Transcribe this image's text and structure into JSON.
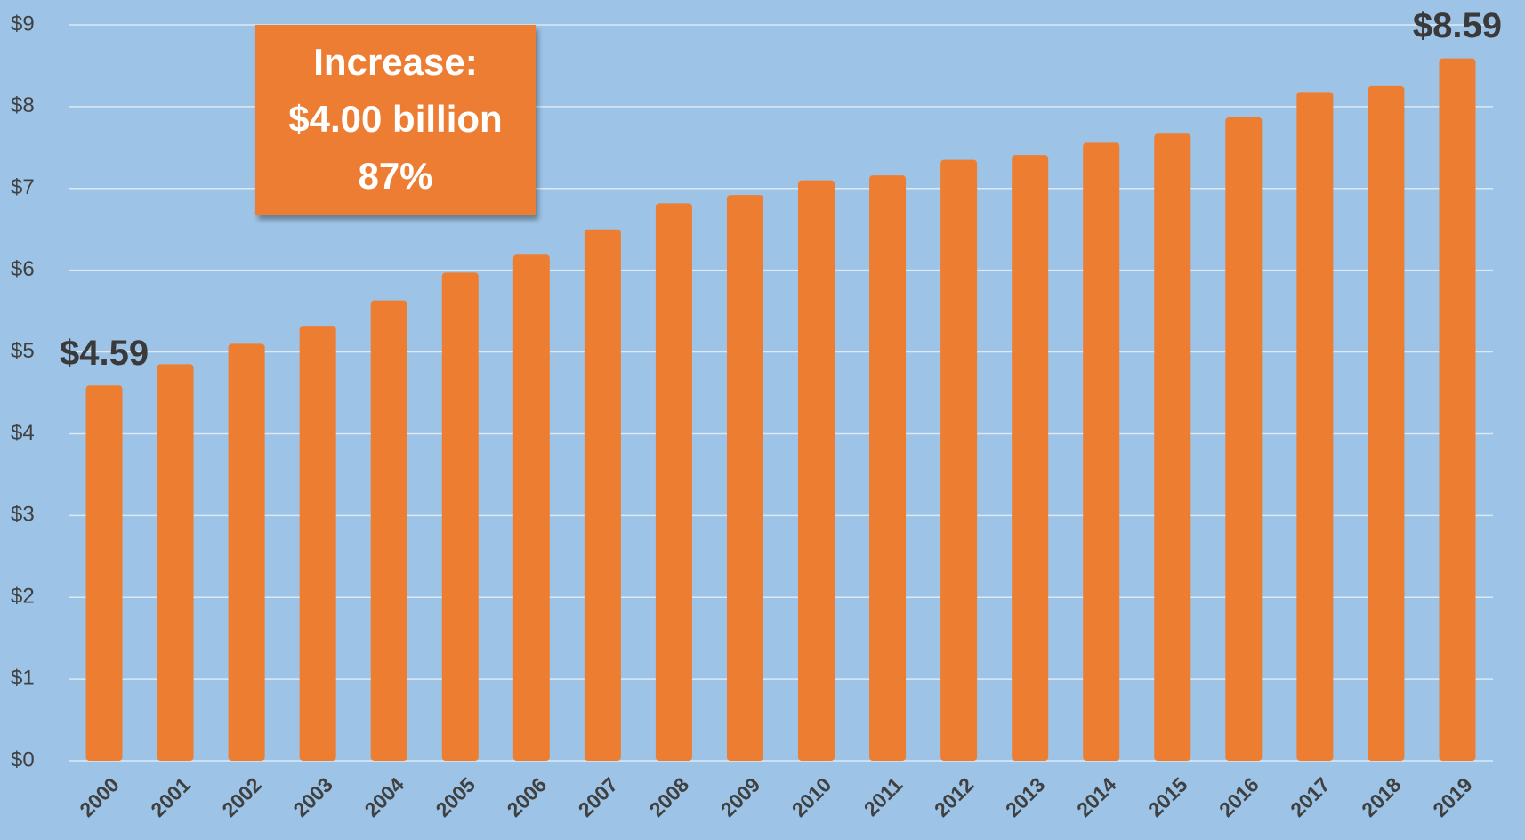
{
  "chart_data": {
    "type": "bar",
    "categories": [
      "2000",
      "2001",
      "2002",
      "2003",
      "2004",
      "2005",
      "2006",
      "2007",
      "2008",
      "2009",
      "2010",
      "2011",
      "2012",
      "2013",
      "2014",
      "2015",
      "2016",
      "2017",
      "2018",
      "2019"
    ],
    "values": [
      4.59,
      4.85,
      5.1,
      5.32,
      5.63,
      5.97,
      6.19,
      6.5,
      6.82,
      6.92,
      7.1,
      7.16,
      7.35,
      7.41,
      7.56,
      7.67,
      7.87,
      8.18,
      8.25,
      8.59
    ],
    "value_labels": [
      "$4.59",
      null,
      null,
      null,
      null,
      null,
      null,
      null,
      null,
      null,
      null,
      null,
      null,
      null,
      null,
      null,
      null,
      null,
      null,
      "$8.59"
    ],
    "color": "#ed7d31",
    "ylim": [
      0,
      9
    ],
    "yticks": [
      {
        "value": 0,
        "label": "$0"
      },
      {
        "value": 1,
        "label": "$1"
      },
      {
        "value": 2,
        "label": "$2"
      },
      {
        "value": 3,
        "label": "$3"
      },
      {
        "value": 4,
        "label": "$4"
      },
      {
        "value": 5,
        "label": "$5"
      },
      {
        "value": 6,
        "label": "$6"
      },
      {
        "value": 7,
        "label": "$7"
      },
      {
        "value": 8,
        "label": "$8"
      },
      {
        "value": 9,
        "label": "$9"
      }
    ],
    "grid": true,
    "annotation": {
      "lines": [
        "Increase:",
        "$4.00 billion",
        "87%"
      ]
    }
  }
}
